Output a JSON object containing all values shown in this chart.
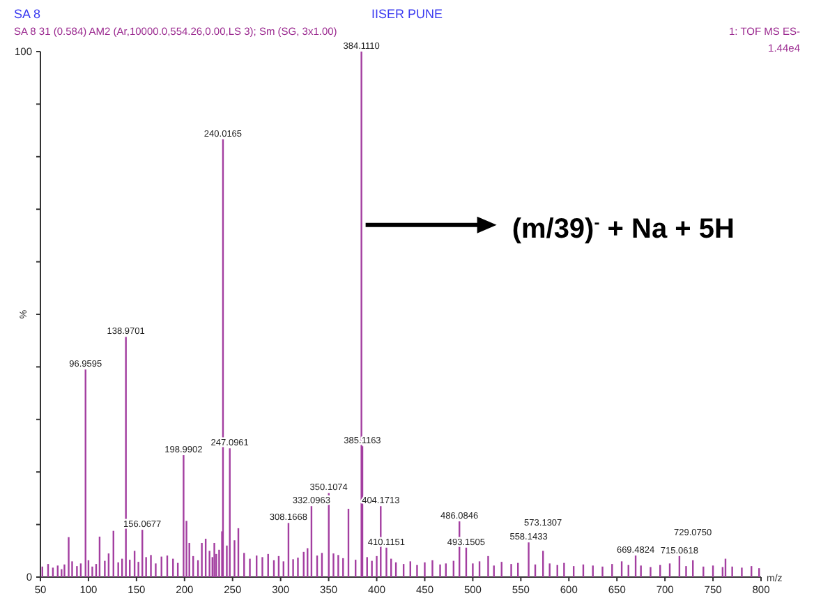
{
  "chart_data": {
    "type": "bar",
    "title": "SA 8",
    "subtitle": "SA 8 31 (0.584) AM2 (Ar,10000.0,554.26,0.00,LS 3); Sm (SG, 3x1.00)",
    "xlabel": "m/z",
    "ylabel": "%",
    "xlim": [
      50,
      800
    ],
    "xticks": [
      50,
      100,
      150,
      200,
      250,
      300,
      350,
      400,
      450,
      500,
      550,
      600,
      650,
      700,
      750,
      800
    ],
    "ylim": [
      0,
      100
    ],
    "yticks": [
      0,
      {
        "value": 10,
        "label": null
      },
      {
        "value": 20,
        "label": null
      },
      {
        "value": 30,
        "label": null
      },
      {
        "value": 40,
        "label": null
      },
      {
        "value": 50,
        "label": null
      },
      {
        "value": 60,
        "label": null
      },
      {
        "value": 70,
        "label": null
      },
      {
        "value": 80,
        "label": null
      },
      {
        "value": 90,
        "label": null
      },
      100
    ],
    "grid": false,
    "series": [
      {
        "color": "#a33ea0",
        "x": [
          52,
          58,
          63,
          68,
          72,
          75,
          79.4,
          83,
          88,
          92,
          96.9595,
          100,
          104,
          108,
          111.6,
          117,
          121,
          126,
          131,
          135,
          138.9701,
          143,
          148,
          152,
          156.0677,
          160,
          165,
          170,
          176,
          182,
          188,
          193,
          198.9902,
          202,
          205,
          209,
          214,
          218,
          222,
          226,
          229,
          231,
          233,
          236,
          239,
          240.0165,
          244,
          247.0961,
          252,
          256,
          262,
          268,
          275,
          281,
          287,
          293,
          298,
          303,
          308.1668,
          313,
          318,
          324,
          328,
          332.0963,
          338,
          343,
          350.1074,
          355,
          360,
          365,
          370.6,
          378,
          384.111,
          385.1163,
          390,
          395,
          400,
          404.1713,
          410.1151,
          415,
          420,
          428,
          435,
          442,
          450,
          458,
          466,
          472,
          480,
          486.0846,
          493.1505,
          500,
          507,
          516,
          522,
          530,
          540,
          547,
          558.1433,
          565,
          573.1307,
          580,
          588,
          595,
          605,
          615,
          625,
          635,
          645,
          655,
          662,
          669.4824,
          675,
          685,
          695,
          705,
          715.0618,
          722,
          729.075,
          740,
          750,
          760,
          763,
          770,
          780,
          790,
          798
        ],
        "values": [
          2.0,
          2.5,
          1.8,
          2.2,
          1.5,
          2.4,
          7.6,
          3.0,
          2.1,
          2.6,
          39.5,
          3.2,
          2.0,
          2.5,
          7.7,
          3.1,
          4.5,
          8.8,
          2.8,
          3.5,
          45.7,
          3.3,
          5.0,
          2.9,
          9.0,
          3.8,
          4.2,
          2.6,
          3.9,
          4.1,
          3.5,
          2.7,
          23.2,
          10.7,
          6.5,
          4.0,
          3.2,
          6.5,
          7.3,
          5.0,
          3.8,
          6.5,
          4.4,
          5.2,
          8.7,
          83.3,
          6.0,
          24.5,
          7.0,
          9.3,
          4.6,
          3.5,
          4.1,
          3.8,
          4.4,
          3.2,
          4.0,
          3.0,
          10.3,
          3.4,
          3.7,
          4.8,
          5.5,
          13.5,
          4.1,
          4.6,
          16.0,
          4.5,
          4.2,
          3.6,
          13.0,
          3.3,
          100,
          24.9,
          3.8,
          3.1,
          4.0,
          13.5,
          5.6,
          3.5,
          2.8,
          2.5,
          3.0,
          2.3,
          2.8,
          3.2,
          2.4,
          2.6,
          3.1,
          10.6,
          5.6,
          2.6,
          3.0,
          4.0,
          2.2,
          2.9,
          2.5,
          2.7,
          6.6,
          2.4,
          5.0,
          2.6,
          2.3,
          2.7,
          2.1,
          2.4,
          2.2,
          2.0,
          2.5,
          3.0,
          2.3,
          4.1,
          2.2,
          1.9,
          2.3,
          2.6,
          4.0,
          2.1,
          3.2,
          2.0,
          2.2,
          1.9,
          3.5,
          2.0,
          1.8,
          2.1,
          1.7
        ]
      }
    ],
    "annotations": [
      "IISER PUNE",
      "1: TOF MS ES-",
      "1.44e4",
      {
        "text": "(m/39)$^{-}$ + Na + 5H",
        "x": 384.111,
        "y": 67
      },
      {
        "text": "96.9595",
        "x": 96.9595,
        "y": 39.5
      },
      {
        "text": "138.9701",
        "x": 138.9701,
        "y": 45.7
      },
      {
        "text": "156.0677",
        "x": 156.0677,
        "y": 9.0
      },
      {
        "text": "198.9902",
        "x": 198.9902,
        "y": 23.2
      },
      {
        "text": "240.0165",
        "x": 240.0165,
        "y": 83.3
      },
      {
        "text": "247.0961",
        "x": 247.0961,
        "y": 24.5
      },
      {
        "text": "308.1668",
        "x": 308.1668,
        "y": 10.3
      },
      {
        "text": "332.0963",
        "x": 332.0963,
        "y": 13.5
      },
      {
        "text": "350.1074",
        "x": 350.1074,
        "y": 16.0
      },
      {
        "text": "384.1110",
        "x": 384.111,
        "y": 100
      },
      {
        "text": "385.1163",
        "x": 385.1163,
        "y": 24.9
      },
      {
        "text": "404.1713",
        "x": 404.1713,
        "y": 13.5
      },
      {
        "text": "410.1151",
        "x": 410.1151,
        "y": 5.6
      },
      {
        "text": "486.0846",
        "x": 486.0846,
        "y": 10.6
      },
      {
        "text": "493.1505",
        "x": 493.1505,
        "y": 5.6
      },
      {
        "text": "558.1433",
        "x": 558.1433,
        "y": 6.6
      },
      {
        "text": "573.1307",
        "x": 573.1307,
        "y": 5.0
      },
      {
        "text": "669.4824",
        "x": 669.4824,
        "y": 4.1
      },
      {
        "text": "715.0618",
        "x": 715.0618,
        "y": 4.0
      },
      {
        "text": "729.0750",
        "x": 729.075,
        "y": 3.2
      }
    ]
  }
}
